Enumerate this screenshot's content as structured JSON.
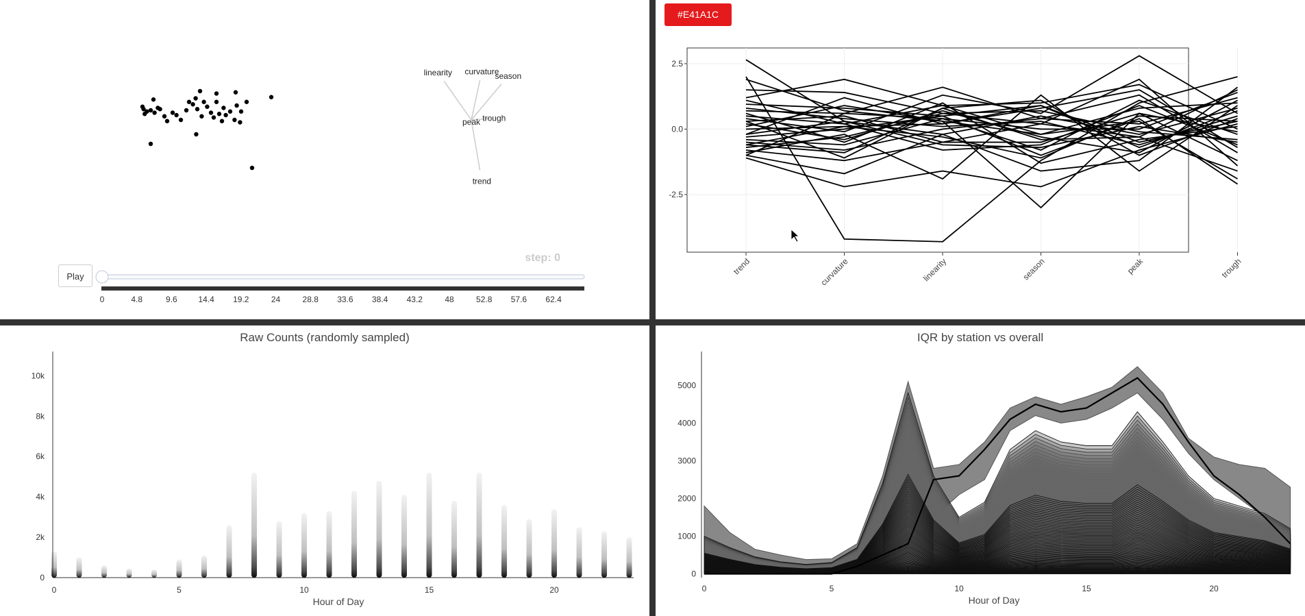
{
  "top_left": {
    "play_label": "Play",
    "step_label": "step: 0",
    "slider_ticks": [
      "0",
      "4.8",
      "9.6",
      "14.4",
      "19.2",
      "24",
      "28.8",
      "33.6",
      "38.4",
      "43.2",
      "48",
      "52.8",
      "57.6",
      "62.4"
    ],
    "chart_data": {
      "type": "scatter",
      "title": "",
      "points": [
        [
          -1.9,
          0.55
        ],
        [
          -1.88,
          0.45
        ],
        [
          -1.82,
          0.35
        ],
        [
          -1.86,
          0.25
        ],
        [
          -1.75,
          0.4
        ],
        [
          -1.7,
          0.85
        ],
        [
          -1.68,
          0.3
        ],
        [
          -1.62,
          0.5
        ],
        [
          -1.58,
          0.45
        ],
        [
          -1.5,
          0.15
        ],
        [
          -1.45,
          -0.05
        ],
        [
          -1.35,
          0.3
        ],
        [
          -1.28,
          0.2
        ],
        [
          -1.2,
          0.0
        ],
        [
          -1.1,
          0.4
        ],
        [
          -1.05,
          0.75
        ],
        [
          -0.98,
          0.65
        ],
        [
          -0.93,
          0.9
        ],
        [
          -0.9,
          0.45
        ],
        [
          -0.85,
          1.2
        ],
        [
          -0.82,
          0.15
        ],
        [
          -0.78,
          0.75
        ],
        [
          -0.72,
          0.55
        ],
        [
          -0.65,
          0.3
        ],
        [
          -0.6,
          0.1
        ],
        [
          -0.55,
          0.75
        ],
        [
          -0.5,
          0.25
        ],
        [
          -0.45,
          -0.05
        ],
        [
          -0.42,
          0.5
        ],
        [
          -0.38,
          0.2
        ],
        [
          -0.3,
          0.35
        ],
        [
          -0.22,
          0.0
        ],
        [
          -0.18,
          0.6
        ],
        [
          -0.12,
          -0.1
        ],
        [
          -0.1,
          0.35
        ],
        [
          0.0,
          0.75
        ],
        [
          -1.75,
          -1.0
        ],
        [
          -0.92,
          -0.6
        ],
        [
          -0.55,
          1.1
        ],
        [
          0.45,
          0.95
        ],
        [
          -0.2,
          1.15
        ],
        [
          0.1,
          -2.0
        ]
      ],
      "biplot": {
        "center_label": "peak",
        "vectors": [
          {
            "label": "linearity",
            "x": -0.95,
            "y": 1.35
          },
          {
            "label": "curvature",
            "x": 0.3,
            "y": 1.38
          },
          {
            "label": "season",
            "x": 1.05,
            "y": 1.25
          },
          {
            "label": "trough",
            "x": 0.65,
            "y": 0.05
          },
          {
            "label": "trend",
            "x": 0.3,
            "y": -1.75
          }
        ]
      }
    }
  },
  "top_right": {
    "color_label": "#E41A1C",
    "color": "#E41A1C",
    "chart_data": {
      "type": "line",
      "title": "",
      "categories": [
        "trend",
        "curvature",
        "linearity",
        "season",
        "peak",
        "trough"
      ],
      "y_ticks": [
        "2.5",
        "0.0",
        "-2.5"
      ],
      "ylim": [
        -4.7,
        3.1
      ],
      "series": [
        [
          2.65,
          0.3,
          -0.6,
          -0.7,
          0.1,
          -0.5
        ],
        [
          2.0,
          -4.2,
          -4.3,
          -1.2,
          1.0,
          2.0
        ],
        [
          1.2,
          1.9,
          0.9,
          -0.2,
          0.3,
          -1.9
        ],
        [
          1.5,
          1.4,
          0.6,
          0.2,
          -0.3,
          1.5
        ],
        [
          0.95,
          0.8,
          0.5,
          0.9,
          -0.5,
          0.3
        ],
        [
          0.7,
          0.6,
          1.6,
          0.4,
          0.2,
          1.2
        ],
        [
          0.5,
          0.2,
          0.9,
          1.0,
          1.7,
          0.0
        ],
        [
          0.4,
          -0.1,
          1.3,
          0.6,
          2.8,
          0.6
        ],
        [
          0.2,
          -0.4,
          0.7,
          -0.3,
          -0.9,
          1.1
        ],
        [
          0.0,
          0.1,
          0.2,
          0.8,
          1.5,
          -0.7
        ],
        [
          -0.2,
          0.3,
          -0.2,
          0.5,
          -0.2,
          0.8
        ],
        [
          -0.4,
          -0.6,
          0.4,
          -0.8,
          1.1,
          -0.2
        ],
        [
          -0.6,
          -0.9,
          0.8,
          1.1,
          -1.0,
          0.4
        ],
        [
          -0.8,
          -1.2,
          -0.5,
          -0.5,
          0.6,
          -1.2
        ],
        [
          -1.0,
          -1.7,
          -0.2,
          -1.6,
          -1.2,
          1.6
        ],
        [
          -1.1,
          -2.2,
          -1.6,
          -2.2,
          -0.8,
          0.2
        ],
        [
          -0.9,
          -0.2,
          -1.9,
          1.3,
          -1.6,
          0.9
        ],
        [
          1.9,
          0.7,
          0.3,
          -3.0,
          0.6,
          -0.1
        ],
        [
          0.3,
          0.5,
          -0.5,
          0.2,
          1.9,
          -1.4
        ],
        [
          -0.3,
          0.0,
          0.5,
          -1.0,
          0.4,
          -2.1
        ],
        [
          0.8,
          0.4,
          0.1,
          0.3,
          -0.6,
          0.5
        ],
        [
          -0.7,
          -0.3,
          0.6,
          0.7,
          -0.1,
          -0.4
        ],
        [
          0.1,
          0.9,
          0.3,
          -0.2,
          0.8,
          1.0
        ],
        [
          -0.5,
          -0.8,
          0.0,
          0.4,
          1.3,
          -0.9
        ],
        [
          0.6,
          -0.5,
          1.0,
          -1.3,
          -0.4,
          0.1
        ],
        [
          -1.0,
          0.6,
          0.4,
          0.0,
          0.0,
          1.4
        ],
        [
          1.1,
          0.2,
          -0.8,
          -0.6,
          0.9,
          -0.6
        ],
        [
          -0.2,
          1.2,
          0.2,
          0.9,
          -0.7,
          0.7
        ],
        [
          0.3,
          -1.1,
          0.8,
          -0.4,
          -0.3,
          -1.6
        ],
        [
          -0.6,
          0.1,
          -0.3,
          -1.1,
          0.5,
          0.3
        ]
      ]
    }
  },
  "bottom_left": {
    "title": "Raw Counts (randomly sampled)",
    "xlabel": "Hour of Day",
    "y_ticks": [
      "0",
      "2k",
      "4k",
      "6k",
      "8k",
      "10k"
    ],
    "x_ticks": [
      "0",
      "5",
      "10",
      "15",
      "20"
    ],
    "chart_data": {
      "type": "scatter",
      "title": "Raw Counts (randomly sampled)",
      "xlabel": "Hour of Day",
      "ylabel": "",
      "ylim": [
        0,
        11200
      ],
      "x": [
        0,
        1,
        2,
        3,
        4,
        5,
        6,
        7,
        8,
        9,
        10,
        11,
        12,
        13,
        14,
        15,
        16,
        17,
        18,
        19,
        20,
        21,
        22,
        23
      ],
      "max_values": [
        1300,
        1000,
        600,
        450,
        400,
        900,
        1100,
        2600,
        5200,
        2800,
        3200,
        3300,
        4300,
        4800,
        4100,
        5200,
        3800,
        5200,
        3600,
        2900,
        3400,
        2500,
        2300,
        2000
      ]
    }
  },
  "bottom_right": {
    "title": "IQR by station vs overall",
    "xlabel": "Hour of Day",
    "y_ticks": [
      "0",
      "1000",
      "2000",
      "3000",
      "4000",
      "5000"
    ],
    "x_ticks": [
      "0",
      "5",
      "10",
      "15",
      "20"
    ],
    "chart_data": {
      "type": "area",
      "title": "IQR by station vs overall",
      "xlabel": "Hour of Day",
      "ylabel": "",
      "ylim": [
        -100,
        5900
      ],
      "x": [
        0,
        1,
        2,
        3,
        4,
        5,
        6,
        7,
        8,
        9,
        10,
        11,
        12,
        13,
        14,
        15,
        16,
        17,
        18,
        19,
        20,
        21,
        22,
        23
      ],
      "overall_upper": [
        1800,
        1100,
        650,
        500,
        380,
        400,
        800,
        2600,
        5100,
        2800,
        2900,
        3500,
        4400,
        4700,
        4500,
        4700,
        4950,
        5500,
        4800,
        3600,
        3100,
        2900,
        2800,
        2300
      ],
      "overall_lower": [
        0,
        0,
        0,
        0,
        0,
        0,
        100,
        300,
        600,
        1500,
        2100,
        2500,
        3800,
        4200,
        4000,
        4100,
        4400,
        4800,
        4100,
        3200,
        2500,
        2000,
        1500,
        900
      ],
      "overall_median": [
        0,
        0,
        0,
        0,
        0,
        0,
        200,
        500,
        800,
        2500,
        2600,
        3300,
        4100,
        4500,
        4300,
        4400,
        4800,
        5200,
        4500,
        3500,
        2600,
        2100,
        1500,
        800
      ],
      "station_max": [
        1000,
        700,
        450,
        320,
        250,
        300,
        700,
        2400,
        4800,
        2600,
        1500,
        1900,
        3300,
        3800,
        3500,
        3400,
        3400,
        4300,
        3500,
        2600,
        2000,
        1800,
        1600,
        1200
      ]
    }
  }
}
